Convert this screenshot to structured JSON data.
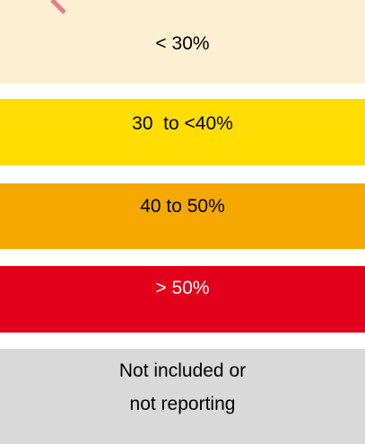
{
  "legend": {
    "items": [
      {
        "label": "< 30%",
        "color": "#fcefd2",
        "text_color": "#000000"
      },
      {
        "label": "30  to <40%",
        "color": "#ffdd00",
        "text_color": "#000000"
      },
      {
        "label": "40 to 50%",
        "color": "#f5a800",
        "text_color": "#000000"
      },
      {
        "label": "> 50%",
        "color": "#e3001b",
        "text_color": "#ffffff"
      },
      {
        "label": "Not included or\nnot reporting",
        "color": "#d9d9d9",
        "text_color": "#000000"
      }
    ]
  }
}
